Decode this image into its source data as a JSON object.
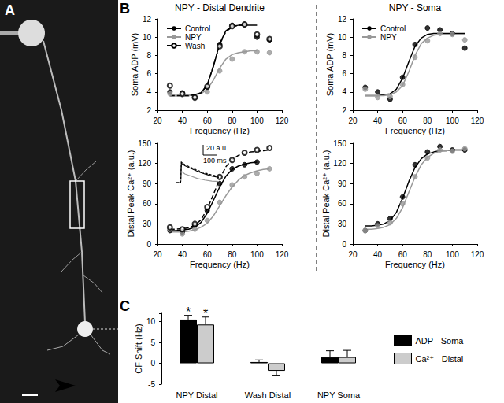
{
  "panel_labels": [
    "A",
    "B",
    "C"
  ],
  "chart_data": [
    {
      "type": "line",
      "title": "NPY - Distal Dendrite",
      "x_label": "Frequency (Hz)",
      "y_label": "Soma ADP (mV)",
      "xlim": [
        20,
        120
      ],
      "xticks": [
        20,
        40,
        60,
        80,
        100,
        120
      ],
      "ylim": [
        2,
        12
      ],
      "yticks": [
        2,
        4,
        6,
        8,
        10,
        12
      ],
      "grid": false,
      "legend": "upper left",
      "x": [
        30,
        40,
        50,
        60,
        70,
        80,
        90,
        100,
        110
      ],
      "fit_x": [
        30,
        35,
        40,
        45,
        50,
        55,
        60,
        65,
        70,
        75,
        80,
        85,
        90,
        95,
        100,
        105,
        110
      ],
      "series": [
        {
          "name": "Control",
          "color": "#000000",
          "marker": "circle",
          "line_style": "solid",
          "values": [
            4.0,
            3.9,
            3.4,
            4.5,
            9.2,
            11.3,
            11.4,
            10.0,
            9.7
          ],
          "fit": [
            3.6,
            3.6,
            3.6,
            3.6,
            3.7,
            3.9,
            4.8,
            6.8,
            9.3,
            10.7,
            11.2,
            11.3,
            11.3,
            11.3,
            11.3,
            null,
            null
          ]
        },
        {
          "name": "NPY",
          "color": "#999999",
          "marker": "circle",
          "line_style": "solid",
          "values": [
            3.8,
            3.7,
            3.3,
            4.0,
            6.3,
            7.6,
            8.4,
            8.4,
            8.3
          ],
          "fit": [
            3.6,
            3.6,
            3.6,
            3.6,
            3.7,
            3.8,
            4.3,
            5.3,
            6.6,
            7.6,
            8.1,
            8.3,
            8.4,
            8.5,
            8.5,
            null,
            null
          ]
        },
        {
          "name": "Wash",
          "color": "#000000",
          "marker": "emptyCircle",
          "line_style": "dashed",
          "values": [
            4.7,
            3.8,
            3.4,
            4.6,
            9.0,
            11.2,
            11.4,
            10.3,
            9.8
          ],
          "fit": [
            3.6,
            3.6,
            3.6,
            3.6,
            3.7,
            3.9,
            4.7,
            6.9,
            9.2,
            10.6,
            11.1,
            11.3,
            11.3,
            null,
            null,
            null,
            null
          ]
        }
      ]
    },
    {
      "type": "line",
      "title": "NPY - Soma",
      "x_label": "Frequency (Hz)",
      "y_label": "Soma ADP (mV)",
      "xlim": [
        20,
        120
      ],
      "xticks": [
        20,
        40,
        60,
        80,
        100,
        120
      ],
      "ylim": [
        2,
        12
      ],
      "yticks": [
        2,
        4,
        6,
        8,
        10,
        12
      ],
      "grid": false,
      "legend": "upper left",
      "x": [
        30,
        40,
        50,
        60,
        70,
        80,
        90,
        100,
        110
      ],
      "fit_x": [
        30,
        35,
        40,
        45,
        50,
        55,
        60,
        65,
        70,
        75,
        80,
        85,
        90,
        95,
        100,
        105,
        110
      ],
      "series": [
        {
          "name": "Control",
          "color": "#000000",
          "marker": "circle",
          "line_style": "solid",
          "values": [
            4.5,
            4.0,
            3.2,
            5.6,
            9.2,
            11.0,
            10.8,
            10.4,
            8.8
          ],
          "fit": [
            3.6,
            3.6,
            3.6,
            3.7,
            3.8,
            4.3,
            5.5,
            7.3,
            9.0,
            9.9,
            10.3,
            10.4,
            10.4,
            10.4,
            10.4,
            10.4,
            10.4
          ]
        },
        {
          "name": "NPY",
          "color": "#999999",
          "marker": "circle",
          "line_style": "solid",
          "values": [
            4.3,
            3.4,
            3.5,
            4.8,
            7.8,
            9.6,
            10.4,
            10.3,
            9.7
          ],
          "fit": [
            3.6,
            3.6,
            3.6,
            3.6,
            3.7,
            4.0,
            4.7,
            6.2,
            8.0,
            9.3,
            9.9,
            10.2,
            10.3,
            10.3,
            10.3,
            10.3,
            10.3
          ]
        }
      ]
    },
    {
      "type": "line",
      "x_label": "Frequency (Hz)",
      "y_label": "Distal Peak Ca²⁺ (a.u.)",
      "xlim": [
        20,
        120
      ],
      "xticks": [
        20,
        40,
        60,
        80,
        100,
        120
      ],
      "ylim": [
        0,
        150
      ],
      "yticks": [
        0,
        30,
        60,
        90,
        120,
        150
      ],
      "grid": false,
      "x": [
        30,
        40,
        50,
        60,
        70,
        80,
        90,
        100,
        110
      ],
      "fit_x": [
        30,
        35,
        40,
        45,
        50,
        55,
        60,
        65,
        70,
        75,
        80,
        85,
        90,
        95,
        100,
        105,
        110
      ],
      "series": [
        {
          "color": "#000000",
          "marker": "circle",
          "line_style": "solid",
          "values": [
            20,
            18,
            28,
            50,
            90,
            112,
            118,
            122,
            null
          ],
          "fit": [
            20,
            20,
            21,
            22,
            25,
            32,
            46,
            65,
            85,
            101,
            111,
            116,
            119,
            121,
            122,
            null,
            null
          ]
        },
        {
          "color": "#999999",
          "marker": "circle",
          "line_style": "solid",
          "values": [
            22,
            15,
            22,
            35,
            62,
            88,
            100,
            105,
            112
          ],
          "fit": [
            18,
            18,
            18,
            19,
            21,
            25,
            31,
            42,
            57,
            72,
            85,
            95,
            102,
            106,
            109,
            111,
            112
          ]
        },
        {
          "color": "#000000",
          "marker": "emptyCircle",
          "line_style": "dashed",
          "values": [
            25,
            22,
            30,
            55,
            100,
            125,
            136,
            140,
            143
          ],
          "fit": [
            22,
            22,
            23,
            24,
            28,
            36,
            52,
            74,
            97,
            115,
            126,
            132,
            135,
            137,
            138,
            139,
            140
          ]
        }
      ],
      "inset": {
        "scale_bars": [
          {
            "value": 20,
            "label": "20 a.u."
          },
          {
            "value": 100,
            "label": "100 ms"
          }
        ],
        "t": [
          0,
          30,
          35,
          60,
          100,
          150,
          200,
          250,
          300
        ],
        "traces": [
          {
            "color": "#000000",
            "line_style": "solid",
            "values": [
              0,
              0,
              38,
              33,
              28,
              22,
              17,
              13,
              10
            ]
          },
          {
            "color": "#999999",
            "line_style": "solid",
            "values": [
              0,
              0,
              22,
              17,
              13,
              8,
              5,
              3,
              2
            ]
          },
          {
            "color": "#000000",
            "line_style": "dashed",
            "values": [
              0,
              0,
              40,
              35,
              30,
              24,
              19,
              15,
              12
            ]
          }
        ]
      }
    },
    {
      "type": "line",
      "x_label": "Frequency (Hz)",
      "y_label": "Distal Peak Ca²⁺ (a.u.)",
      "xlim": [
        20,
        120
      ],
      "xticks": [
        20,
        40,
        60,
        80,
        100,
        120
      ],
      "ylim": [
        0,
        150
      ],
      "yticks": [
        0,
        30,
        60,
        90,
        120,
        150
      ],
      "grid": false,
      "x": [
        30,
        40,
        50,
        60,
        70,
        80,
        90,
        100,
        110
      ],
      "fit_x": [
        30,
        35,
        40,
        45,
        50,
        55,
        60,
        65,
        70,
        75,
        80,
        85,
        90,
        95,
        100,
        105,
        110
      ],
      "series": [
        {
          "color": "#000000",
          "marker": "circle",
          "line_style": "solid",
          "values": [
            20,
            30,
            38,
            70,
            118,
            137,
            145,
            140,
            140
          ],
          "fit": [
            27,
            27,
            28,
            30,
            35,
            47,
            68,
            93,
            114,
            127,
            134,
            137,
            139,
            139,
            140,
            140,
            140
          ]
        },
        {
          "color": "#999999",
          "marker": "circle",
          "line_style": "solid",
          "values": [
            20,
            27,
            32,
            60,
            100,
            128,
            140,
            138,
            142
          ],
          "fit": [
            22,
            22,
            23,
            25,
            29,
            38,
            54,
            77,
            100,
            118,
            129,
            135,
            138,
            139,
            140,
            140,
            140
          ]
        }
      ]
    },
    {
      "type": "bar",
      "y_label": "CF Shift (Hz)",
      "categories": [
        "NPY Distal",
        "Wash Distal",
        "NPY Soma"
      ],
      "ylim": [
        -5,
        12
      ],
      "yticks": [
        -5,
        0,
        5,
        10
      ],
      "grid": false,
      "legend": "right",
      "series": [
        {
          "name": "ADP - Soma",
          "color": "#000000",
          "values": [
            10.5,
            0.3,
            1.5
          ],
          "errors": [
            1.0,
            0.5,
            1.5
          ]
        },
        {
          "name": "Ca²⁺ - Distal",
          "color": "#cccccc",
          "values": [
            9.3,
            -1.8,
            1.5
          ],
          "errors": [
            1.8,
            1.2,
            1.6
          ]
        }
      ],
      "annotations": [
        {
          "text": "*",
          "category": "NPY Distal",
          "series": "ADP - Soma"
        },
        {
          "text": "*",
          "category": "NPY Distal",
          "series": "Ca²⁺ - Distal"
        }
      ]
    }
  ]
}
